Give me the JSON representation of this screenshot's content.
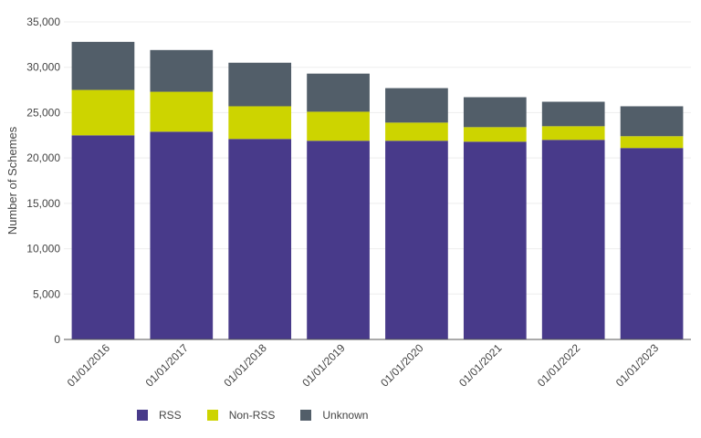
{
  "chart_data": {
    "type": "bar",
    "stacked": true,
    "categories": [
      "01/01/2016",
      "01/01/2017",
      "01/01/2018",
      "01/01/2019",
      "01/01/2020",
      "01/01/2021",
      "01/01/2022",
      "01/01/2023"
    ],
    "series": [
      {
        "name": "RSS",
        "color": "#483a8a",
        "values": [
          22500,
          22900,
          22100,
          21900,
          21900,
          21800,
          22000,
          21100
        ]
      },
      {
        "name": "Non-RSS",
        "color": "#cdd400",
        "values": [
          5000,
          4400,
          3600,
          3200,
          2000,
          1600,
          1500,
          1300
        ]
      },
      {
        "name": "Unknown",
        "color": "#525e69",
        "values": [
          5300,
          4600,
          4800,
          4200,
          3800,
          3300,
          2700,
          3300
        ]
      }
    ],
    "title": "",
    "xlabel": "",
    "ylabel": "Number of Schemes",
    "ylim": [
      0,
      35000
    ],
    "yticks": [
      0,
      5000,
      10000,
      15000,
      20000,
      25000,
      30000,
      35000
    ],
    "grid": true,
    "legend_position": "bottom-left"
  }
}
